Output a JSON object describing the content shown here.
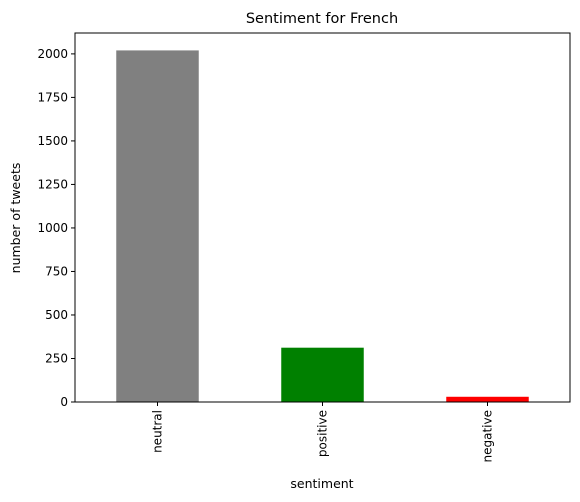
{
  "chart_data": {
    "type": "bar",
    "title": "Sentiment for French",
    "xlabel": "sentiment",
    "ylabel": "number of tweets",
    "categories": [
      "neutral",
      "positive",
      "negative"
    ],
    "values": [
      2020,
      312,
      30
    ],
    "colors": [
      "#808080",
      "#008000",
      "#ff0000"
    ],
    "ylim": [
      0,
      2120
    ],
    "yticks": [
      0,
      250,
      500,
      750,
      1000,
      1250,
      1500,
      1750,
      2000
    ],
    "grid": false,
    "legend": "none"
  }
}
